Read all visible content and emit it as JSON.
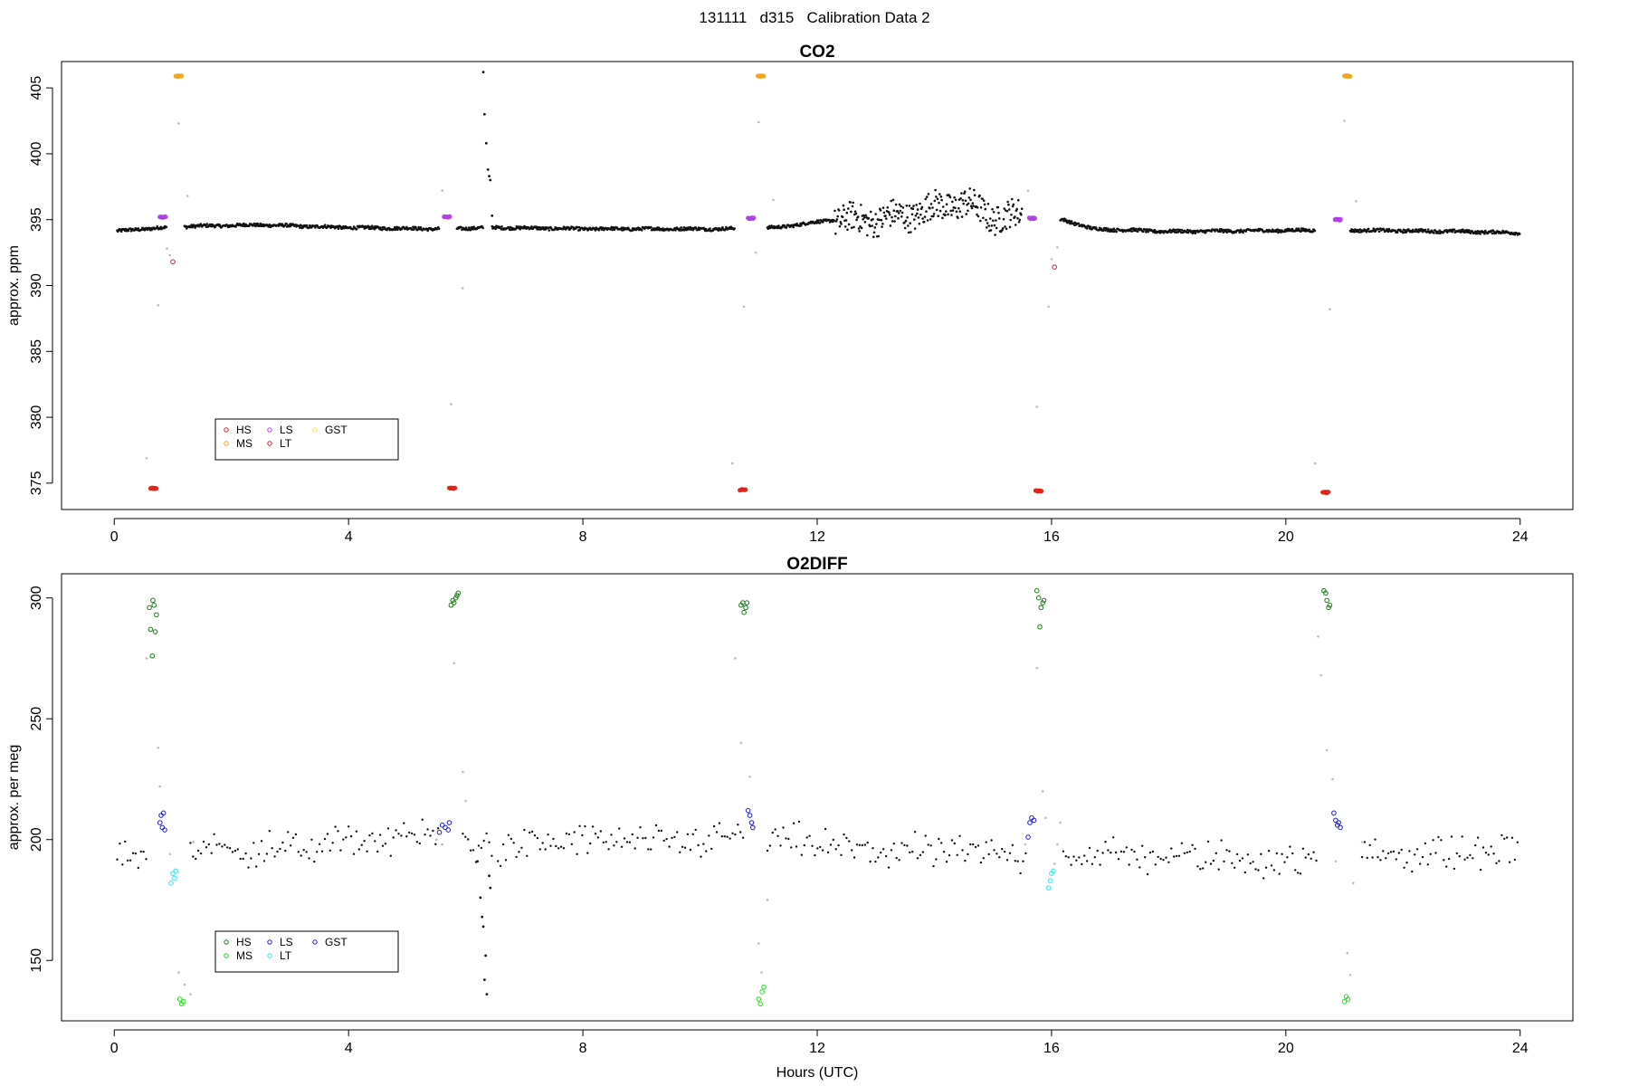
{
  "figure_title": "131111   d315   Calibration Data 2",
  "colors": {
    "HS_co2": "#e0221b",
    "MS_co2": "#f2a51a",
    "LS_co2": "#b13fe6",
    "LT_co2": "#c4232a",
    "GST_co2": "#f5ee3a",
    "HS_o2": "#1a7a1a",
    "MS_o2": "#22e022",
    "LS_o2": "#1b1bdf",
    "LT_o2": "#29e6e6",
    "GST_o2": "#1b1bdf",
    "ambient": "#111111",
    "flush": "#bdbdbd"
  },
  "chart_data": [
    {
      "type": "scatter",
      "title": "CO2",
      "xlabel": "",
      "ylabel": "approx. ppm",
      "xlim": [
        -0.9,
        24.9
      ],
      "ylim": [
        373,
        407
      ],
      "xticks": [
        0,
        4,
        8,
        12,
        16,
        20,
        24
      ],
      "yticks": [
        375,
        380,
        385,
        390,
        395,
        400,
        405
      ],
      "legend": {
        "position": "bottom-left",
        "entries": [
          {
            "label": "HS",
            "color_key": "HS_co2"
          },
          {
            "label": "MS",
            "color_key": "MS_co2"
          },
          {
            "label": "LS",
            "color_key": "LS_co2"
          },
          {
            "label": "LT",
            "color_key": "LT_co2"
          },
          {
            "label": "GST",
            "color_key": "GST_co2"
          }
        ]
      },
      "calibration_groups": [
        {
          "name": "HS",
          "color_key": "HS_co2",
          "x_ranges": [
            [
              0.62,
              0.72
            ],
            [
              5.72,
              5.82
            ],
            [
              10.68,
              10.78
            ],
            [
              15.73,
              15.83
            ],
            [
              20.63,
              20.73
            ]
          ],
          "y": [
            374.6,
            374.6,
            374.5,
            374.4,
            374.3
          ]
        },
        {
          "name": "LS",
          "color_key": "LS_co2",
          "x_ranges": [
            [
              0.78,
              0.88
            ],
            [
              5.63,
              5.73
            ],
            [
              10.82,
              10.92
            ],
            [
              15.62,
              15.72
            ],
            [
              20.84,
              20.94
            ]
          ],
          "y": [
            395.2,
            395.2,
            395.1,
            395.1,
            395.0
          ]
        },
        {
          "name": "MS",
          "color_key": "MS_co2",
          "x_ranges": [
            [
              1.05,
              1.15
            ],
            [
              10.99,
              11.09
            ],
            [
              21.0,
              21.1
            ]
          ],
          "y": [
            405.9,
            405.9,
            405.9
          ]
        },
        {
          "name": "LT",
          "color_key": "LT_co2",
          "x_ranges": [
            [
              1.0,
              1.0
            ],
            [
              16.05,
              16.05
            ]
          ],
          "y": [
            391.8,
            391.4
          ]
        }
      ],
      "ambient_segments": [
        [
          0.05,
          0.9
        ],
        [
          1.2,
          5.55
        ],
        [
          5.85,
          6.3
        ],
        [
          6.45,
          10.6
        ],
        [
          11.15,
          15.5
        ],
        [
          16.15,
          20.5
        ],
        [
          21.1,
          24.0
        ]
      ],
      "ambient_baseline": [
        [
          0.0,
          394.1
        ],
        [
          0.5,
          394.3
        ],
        [
          1.3,
          394.5
        ],
        [
          2.5,
          394.6
        ],
        [
          4.0,
          394.4
        ],
        [
          5.5,
          394.3
        ],
        [
          6.5,
          394.4
        ],
        [
          8.0,
          394.3
        ],
        [
          10.5,
          394.3
        ],
        [
          11.3,
          394.4
        ],
        [
          12.3,
          395.0
        ],
        [
          13.0,
          395.0
        ],
        [
          13.6,
          395.4
        ],
        [
          14.0,
          395.9
        ],
        [
          14.5,
          396.3
        ],
        [
          15.0,
          395.2
        ],
        [
          15.5,
          395.3
        ],
        [
          16.2,
          395.0
        ],
        [
          16.7,
          394.3
        ],
        [
          18.0,
          394.1
        ],
        [
          20.5,
          394.2
        ],
        [
          21.2,
          394.2
        ],
        [
          23.0,
          394.1
        ],
        [
          24.0,
          394.0
        ]
      ],
      "spike_points": [
        [
          6.3,
          406.2
        ],
        [
          6.32,
          403.0
        ],
        [
          6.35,
          400.8
        ],
        [
          6.38,
          398.8
        ],
        [
          6.4,
          398.3
        ],
        [
          6.42,
          398.0
        ],
        [
          6.45,
          395.3
        ]
      ],
      "flush_points": [
        [
          0.55,
          376.9
        ],
        [
          0.75,
          388.5
        ],
        [
          0.9,
          392.8
        ],
        [
          0.95,
          392.3
        ],
        [
          1.1,
          402.3
        ],
        [
          1.25,
          396.8
        ],
        [
          5.6,
          397.2
        ],
        [
          5.75,
          381.0
        ],
        [
          5.95,
          389.8
        ],
        [
          10.55,
          376.5
        ],
        [
          10.75,
          388.4
        ],
        [
          10.95,
          392.5
        ],
        [
          11.0,
          402.4
        ],
        [
          11.25,
          396.5
        ],
        [
          15.6,
          397.2
        ],
        [
          15.75,
          380.8
        ],
        [
          15.95,
          388.4
        ],
        [
          16.0,
          392.0
        ],
        [
          16.1,
          392.9
        ],
        [
          20.5,
          376.5
        ],
        [
          20.75,
          388.2
        ],
        [
          21.0,
          402.5
        ],
        [
          21.2,
          396.4
        ]
      ]
    },
    {
      "type": "scatter",
      "title": "O2DIFF",
      "xlabel": "Hours (UTC)",
      "ylabel": "approx. per meg",
      "xlim": [
        -0.9,
        24.9
      ],
      "ylim": [
        125,
        310
      ],
      "xticks": [
        0,
        4,
        8,
        12,
        16,
        20,
        24
      ],
      "yticks": [
        150,
        200,
        250,
        300
      ],
      "legend": {
        "position": "bottom-left",
        "entries": [
          {
            "label": "HS",
            "color_key": "HS_o2"
          },
          {
            "label": "MS",
            "color_key": "MS_o2"
          },
          {
            "label": "LS",
            "color_key": "LS_o2"
          },
          {
            "label": "LT",
            "color_key": "LT_o2"
          },
          {
            "label": "GST",
            "color_key": "GST_o2"
          }
        ]
      },
      "calibration_groups": [
        {
          "name": "HS",
          "color_key": "HS_o2",
          "points": [
            [
              0.6,
              296
            ],
            [
              0.62,
              287
            ],
            [
              0.65,
              276
            ],
            [
              0.66,
              299
            ],
            [
              0.68,
              297
            ],
            [
              0.7,
              286
            ],
            [
              0.72,
              293
            ],
            [
              5.75,
              297
            ],
            [
              5.78,
              299
            ],
            [
              5.8,
              298
            ],
            [
              5.83,
              300
            ],
            [
              5.85,
              301
            ],
            [
              5.87,
              302
            ],
            [
              10.7,
              297
            ],
            [
              10.73,
              298
            ],
            [
              10.75,
              294
            ],
            [
              10.78,
              296
            ],
            [
              10.8,
              298
            ],
            [
              15.75,
              303
            ],
            [
              15.78,
              300
            ],
            [
              15.8,
              288
            ],
            [
              15.82,
              296
            ],
            [
              15.85,
              298
            ],
            [
              15.87,
              299
            ],
            [
              20.65,
              303
            ],
            [
              20.68,
              302
            ],
            [
              20.7,
              299
            ],
            [
              20.73,
              296
            ],
            [
              20.75,
              297
            ]
          ]
        },
        {
          "name": "LS",
          "color_key": "LS_o2",
          "points": [
            [
              0.78,
              207
            ],
            [
              0.8,
              210
            ],
            [
              0.82,
              205
            ],
            [
              0.84,
              211
            ],
            [
              0.86,
              204
            ],
            [
              5.55,
              203
            ],
            [
              5.6,
              206
            ],
            [
              5.65,
              205
            ],
            [
              5.7,
              204
            ],
            [
              5.72,
              207
            ],
            [
              10.82,
              212
            ],
            [
              10.85,
              210
            ],
            [
              10.88,
              207
            ],
            [
              10.9,
              205
            ],
            [
              15.6,
              201
            ],
            [
              15.63,
              207
            ],
            [
              15.66,
              209
            ],
            [
              15.7,
              208
            ],
            [
              20.82,
              211
            ],
            [
              20.85,
              208
            ],
            [
              20.88,
              206
            ],
            [
              20.9,
              207
            ],
            [
              20.93,
              205
            ]
          ]
        },
        {
          "name": "LT",
          "color_key": "LT_o2",
          "points": [
            [
              0.97,
              182
            ],
            [
              1.0,
              186
            ],
            [
              1.03,
              184
            ],
            [
              1.05,
              187
            ],
            [
              15.95,
              180
            ],
            [
              15.98,
              183
            ],
            [
              16.0,
              186
            ],
            [
              16.03,
              187
            ]
          ]
        },
        {
          "name": "MS",
          "color_key": "MS_o2",
          "points": [
            [
              1.12,
              134
            ],
            [
              1.15,
              132
            ],
            [
              1.18,
              133
            ],
            [
              11.0,
              134
            ],
            [
              11.03,
              132
            ],
            [
              11.06,
              137
            ],
            [
              11.09,
              139
            ],
            [
              21.0,
              133
            ],
            [
              21.03,
              135
            ],
            [
              21.06,
              134
            ]
          ]
        }
      ],
      "ambient_segments": [
        [
          0.05,
          0.55
        ],
        [
          1.3,
          5.55
        ],
        [
          5.95,
          6.45
        ],
        [
          6.55,
          10.75
        ],
        [
          11.15,
          15.6
        ],
        [
          16.2,
          20.55
        ],
        [
          21.3,
          24.0
        ]
      ],
      "ambient_baseline": [
        [
          0.0,
          193
        ],
        [
          1.5,
          196
        ],
        [
          3.0,
          196
        ],
        [
          4.0,
          199
        ],
        [
          5.5,
          202
        ],
        [
          6.5,
          196
        ],
        [
          8.0,
          200
        ],
        [
          9.5,
          198
        ],
        [
          10.7,
          202
        ],
        [
          11.5,
          199
        ],
        [
          13.0,
          195
        ],
        [
          15.5,
          194
        ],
        [
          16.5,
          194
        ],
        [
          18.0,
          193
        ],
        [
          20.5,
          191
        ],
        [
          21.5,
          195
        ],
        [
          23.0,
          194
        ],
        [
          24.0,
          196
        ]
      ],
      "ambient_scatter_amplitude": 7,
      "spike_points": [
        [
          6.2,
          191
        ],
        [
          6.25,
          176
        ],
        [
          6.28,
          168
        ],
        [
          6.3,
          164
        ],
        [
          6.32,
          142
        ],
        [
          6.34,
          152
        ],
        [
          6.36,
          136
        ],
        [
          6.4,
          185
        ],
        [
          6.42,
          180
        ]
      ],
      "flush_points": [
        [
          0.55,
          275
        ],
        [
          0.75,
          238
        ],
        [
          0.78,
          222
        ],
        [
          0.95,
          194
        ],
        [
          1.1,
          145
        ],
        [
          1.2,
          140
        ],
        [
          1.3,
          136
        ],
        [
          1.35,
          199
        ],
        [
          5.5,
          200
        ],
        [
          5.6,
          198
        ],
        [
          5.8,
          273
        ],
        [
          5.95,
          228
        ],
        [
          6.0,
          216
        ],
        [
          10.6,
          275
        ],
        [
          10.7,
          240
        ],
        [
          10.85,
          226
        ],
        [
          11.0,
          157
        ],
        [
          11.05,
          145
        ],
        [
          11.15,
          175
        ],
        [
          15.55,
          198
        ],
        [
          15.75,
          271
        ],
        [
          15.85,
          220
        ],
        [
          15.9,
          209
        ],
        [
          16.05,
          190
        ],
        [
          16.1,
          198
        ],
        [
          16.15,
          207
        ],
        [
          20.55,
          284
        ],
        [
          20.6,
          268
        ],
        [
          20.7,
          237
        ],
        [
          20.8,
          225
        ],
        [
          20.85,
          191
        ],
        [
          21.05,
          153
        ],
        [
          21.1,
          144
        ],
        [
          21.15,
          182
        ],
        [
          21.3,
          199
        ]
      ]
    }
  ]
}
